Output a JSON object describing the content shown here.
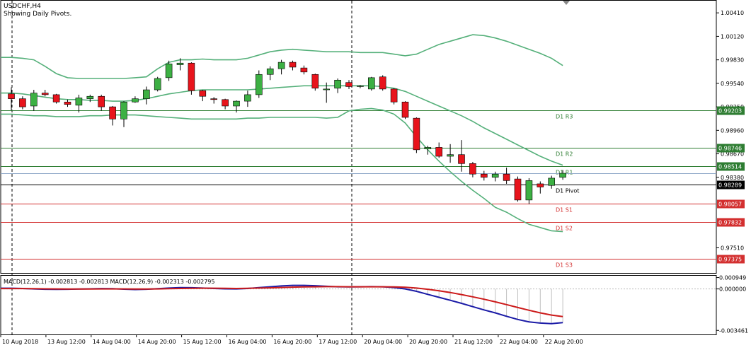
{
  "header": {
    "symbol": "USDCHF,H4",
    "subtitle": "Showing Daily Pivots."
  },
  "colors": {
    "bull": "#3cb043",
    "bear": "#e8141c",
    "band": "#55b07a",
    "resistance": "#2e7d32",
    "support": "#d32f2f",
    "pivot": "#000000",
    "macd_main": "#1a1aa6",
    "macd_signal": "#cc1a1a",
    "bid": "#8fa8c8"
  },
  "price_axis": {
    "ticks": [
      "1.00410",
      "1.00120",
      "0.99830",
      "0.99540",
      "0.99250",
      "0.98960",
      "0.98670",
      "0.98380",
      "0.97510"
    ]
  },
  "pivots": [
    {
      "label": "D1 R3",
      "value": "0.99203",
      "type": "resistance"
    },
    {
      "label": "D1 R2",
      "value": "0.98746",
      "type": "resistance"
    },
    {
      "label": "D1 R1",
      "value": "0.98514",
      "type": "resistance"
    },
    {
      "label": "D1 Pivot",
      "value": "0.98289",
      "type": "pivot"
    },
    {
      "label": "D1 S1",
      "value": "0.98057",
      "type": "support"
    },
    {
      "label": "D1 S2",
      "value": "0.97832",
      "type": "support"
    },
    {
      "label": "D1 S3",
      "value": "0.97375",
      "type": "support"
    }
  ],
  "current_price": "0.98430",
  "date_axis": [
    "10 Aug 2018",
    "13 Aug 12:00",
    "14 Aug 04:00",
    "14 Aug 20:00",
    "15 Aug 12:00",
    "16 Aug 04:00",
    "16 Aug 20:00",
    "17 Aug 12:00",
    "20 Aug 04:00",
    "20 Aug 20:00",
    "21 Aug 12:00",
    "22 Aug 04:00",
    "22 Aug 20:00"
  ],
  "macd": {
    "label": "MACD(12,26,1) -0.002813 -0.002813 MACD(12,26,9) -0.002313 -0.002795",
    "ticks": [
      "0.000949",
      "0.000000",
      "-0.003461"
    ]
  },
  "chart_data": {
    "type": "candlestick",
    "candles": [
      {
        "o": 0.9941,
        "h": 0.9949,
        "l": 0.9921,
        "c": 0.9935
      },
      {
        "o": 0.9935,
        "h": 0.9938,
        "l": 0.9922,
        "c": 0.9925
      },
      {
        "o": 0.9926,
        "h": 0.9946,
        "l": 0.992,
        "c": 0.9942
      },
      {
        "o": 0.9942,
        "h": 0.9946,
        "l": 0.9938,
        "c": 0.994
      },
      {
        "o": 0.994,
        "h": 0.9941,
        "l": 0.9929,
        "c": 0.9931
      },
      {
        "o": 0.9931,
        "h": 0.9934,
        "l": 0.9925,
        "c": 0.9928
      },
      {
        "o": 0.9927,
        "h": 0.994,
        "l": 0.9918,
        "c": 0.9936
      },
      {
        "o": 0.9935,
        "h": 0.994,
        "l": 0.9931,
        "c": 0.9938
      },
      {
        "o": 0.9938,
        "h": 0.994,
        "l": 0.992,
        "c": 0.9925
      },
      {
        "o": 0.9925,
        "h": 0.9926,
        "l": 0.9902,
        "c": 0.991
      },
      {
        "o": 0.991,
        "h": 0.9932,
        "l": 0.99,
        "c": 0.9931
      },
      {
        "o": 0.9931,
        "h": 0.9938,
        "l": 0.993,
        "c": 0.9935
      },
      {
        "o": 0.9935,
        "h": 0.995,
        "l": 0.9928,
        "c": 0.9946
      },
      {
        "o": 0.9946,
        "h": 0.9962,
        "l": 0.9944,
        "c": 0.996
      },
      {
        "o": 0.9961,
        "h": 0.9982,
        "l": 0.9957,
        "c": 0.9978
      },
      {
        "o": 0.9977,
        "h": 0.9985,
        "l": 0.997,
        "c": 0.9979
      },
      {
        "o": 0.9979,
        "h": 0.998,
        "l": 0.994,
        "c": 0.9945
      },
      {
        "o": 0.9945,
        "h": 0.9946,
        "l": 0.9932,
        "c": 0.9938
      },
      {
        "o": 0.9935,
        "h": 0.9937,
        "l": 0.9929,
        "c": 0.9934
      },
      {
        "o": 0.9934,
        "h": 0.9935,
        "l": 0.9922,
        "c": 0.9926
      },
      {
        "o": 0.9926,
        "h": 0.9933,
        "l": 0.9918,
        "c": 0.9932
      },
      {
        "o": 0.9932,
        "h": 0.9945,
        "l": 0.9925,
        "c": 0.994
      },
      {
        "o": 0.994,
        "h": 0.997,
        "l": 0.9936,
        "c": 0.9965
      },
      {
        "o": 0.9965,
        "h": 0.9975,
        "l": 0.9958,
        "c": 0.9972
      },
      {
        "o": 0.9972,
        "h": 0.9983,
        "l": 0.9965,
        "c": 0.998
      },
      {
        "o": 0.998,
        "h": 0.9982,
        "l": 0.997,
        "c": 0.9974
      },
      {
        "o": 0.9973,
        "h": 0.9976,
        "l": 0.9965,
        "c": 0.9968
      },
      {
        "o": 0.9965,
        "h": 0.9966,
        "l": 0.9945,
        "c": 0.9948
      },
      {
        "o": 0.9946,
        "h": 0.9955,
        "l": 0.993,
        "c": 0.9947
      },
      {
        "o": 0.9948,
        "h": 0.996,
        "l": 0.9942,
        "c": 0.9958
      },
      {
        "o": 0.9955,
        "h": 0.9958,
        "l": 0.9947,
        "c": 0.995
      },
      {
        "o": 0.995,
        "h": 0.9952,
        "l": 0.9948,
        "c": 0.9951
      },
      {
        "o": 0.9947,
        "h": 0.9962,
        "l": 0.9945,
        "c": 0.9961
      },
      {
        "o": 0.9962,
        "h": 0.9964,
        "l": 0.9945,
        "c": 0.9947
      },
      {
        "o": 0.9947,
        "h": 0.9948,
        "l": 0.9928,
        "c": 0.9931
      },
      {
        "o": 0.9931,
        "h": 0.9932,
        "l": 0.991,
        "c": 0.9912
      },
      {
        "o": 0.9911,
        "h": 0.9912,
        "l": 0.9868,
        "c": 0.9872
      },
      {
        "o": 0.9873,
        "h": 0.9877,
        "l": 0.9866,
        "c": 0.9875
      },
      {
        "o": 0.9875,
        "h": 0.9881,
        "l": 0.9862,
        "c": 0.9864
      },
      {
        "o": 0.9864,
        "h": 0.9879,
        "l": 0.9856,
        "c": 0.9866
      },
      {
        "o": 0.9866,
        "h": 0.9884,
        "l": 0.9845,
        "c": 0.9855
      },
      {
        "o": 0.9855,
        "h": 0.9857,
        "l": 0.9838,
        "c": 0.9842
      },
      {
        "o": 0.9842,
        "h": 0.9846,
        "l": 0.9834,
        "c": 0.9838
      },
      {
        "o": 0.9838,
        "h": 0.9845,
        "l": 0.9833,
        "c": 0.9842
      },
      {
        "o": 0.9842,
        "h": 0.985,
        "l": 0.983,
        "c": 0.9834
      },
      {
        "o": 0.9836,
        "h": 0.9839,
        "l": 0.9808,
        "c": 0.981
      },
      {
        "o": 0.981,
        "h": 0.9837,
        "l": 0.9805,
        "c": 0.9834
      },
      {
        "o": 0.983,
        "h": 0.9833,
        "l": 0.9818,
        "c": 0.9826
      },
      {
        "o": 0.9828,
        "h": 0.984,
        "l": 0.9824,
        "c": 0.9837
      },
      {
        "o": 0.9838,
        "h": 0.9847,
        "l": 0.9835,
        "c": 0.9843
      }
    ],
    "bands": {
      "upper": [
        0.9986,
        0.9985,
        0.9983,
        0.9975,
        0.9966,
        0.9961,
        0.996,
        0.996,
        0.996,
        0.996,
        0.996,
        0.9961,
        0.9962,
        0.9972,
        0.998,
        0.9983,
        0.9983,
        0.9984,
        0.9983,
        0.9983,
        0.9983,
        0.9985,
        0.9989,
        0.9993,
        0.9995,
        0.9996,
        0.9995,
        0.9994,
        0.9993,
        0.9993,
        0.9993,
        0.9992,
        0.9992,
        0.9992,
        0.999,
        0.9988,
        0.999,
        0.9996,
        1.0002,
        1.0006,
        1.001,
        1.0014,
        1.0013,
        1.001,
        1.0006,
        1.0001,
        0.9996,
        0.9991,
        0.9985,
        0.9976
      ],
      "middle": [
        0.9942,
        0.9941,
        0.9939,
        0.9937,
        0.9935,
        0.9934,
        0.9934,
        0.9933,
        0.9933,
        0.9932,
        0.9932,
        0.9933,
        0.9935,
        0.9938,
        0.9941,
        0.9943,
        0.9945,
        0.9946,
        0.9946,
        0.9946,
        0.9946,
        0.9946,
        0.9947,
        0.9948,
        0.9949,
        0.995,
        0.9951,
        0.9951,
        0.9951,
        0.9951,
        0.9951,
        0.9951,
        0.9951,
        0.995,
        0.9948,
        0.9944,
        0.9938,
        0.9932,
        0.9926,
        0.992,
        0.9914,
        0.9907,
        0.9899,
        0.9892,
        0.9885,
        0.9878,
        0.9871,
        0.9864,
        0.9858,
        0.9853
      ],
      "lower": [
        0.9916,
        0.9915,
        0.9914,
        0.9914,
        0.9913,
        0.9913,
        0.9913,
        0.9914,
        0.9914,
        0.9915,
        0.9915,
        0.9915,
        0.9914,
        0.9913,
        0.9912,
        0.9911,
        0.991,
        0.991,
        0.991,
        0.991,
        0.991,
        0.9911,
        0.9911,
        0.9912,
        0.9912,
        0.9912,
        0.9912,
        0.9912,
        0.9911,
        0.9912,
        0.992,
        0.9922,
        0.9923,
        0.9921,
        0.9916,
        0.9905,
        0.9888,
        0.9872,
        0.9858,
        0.9845,
        0.9833,
        0.9822,
        0.9812,
        0.9801,
        0.9795,
        0.9787,
        0.978,
        0.9776,
        0.9772,
        0.9771
      ]
    },
    "macd_main": [
      6e-05,
      4e-05,
      0.0,
      -3e-05,
      -4e-05,
      -3e-05,
      -1e-05,
      1e-05,
      3e-05,
      2e-05,
      -2e-05,
      -5e-05,
      -3e-05,
      2e-05,
      7e-05,
      0.00011,
      0.0001,
      7e-05,
      4e-05,
      1e-05,
      0.0,
      4e-05,
      0.00011,
      0.00018,
      0.00025,
      0.0003,
      0.0003,
      0.00027,
      0.00022,
      0.00018,
      0.00017,
      0.00018,
      0.00019,
      0.00018,
      0.00012,
      0.0,
      -0.0002,
      -0.00045,
      -0.0007,
      -0.00095,
      -0.0012,
      -0.00148,
      -0.00175,
      -0.002,
      -0.00228,
      -0.00255,
      -0.00275,
      -0.00285,
      -0.0029,
      -0.00281
    ],
    "macd_signal": [
      3e-05,
      3e-05,
      2e-05,
      1e-05,
      0.0,
      -1e-05,
      -1e-05,
      -1e-05,
      0.0,
      0.0,
      0.0,
      -1e-05,
      -1e-05,
      0.0,
      2e-05,
      4e-05,
      5e-05,
      6e-05,
      6e-05,
      5e-05,
      4e-05,
      5e-05,
      7e-05,
      9e-05,
      0.00012,
      0.00015,
      0.00017,
      0.00018,
      0.00019,
      0.00019,
      0.00018,
      0.00018,
      0.00018,
      0.00018,
      0.00017,
      0.00014,
      7e-05,
      -3e-05,
      -0.00015,
      -0.0003,
      -0.00047,
      -0.00066,
      -0.00086,
      -0.00108,
      -0.00131,
      -0.00155,
      -0.00178,
      -0.002,
      -0.00218,
      -0.00231
    ],
    "y_range": [
      0.972,
      1.0056
    ],
    "macd_range": [
      -0.0038,
      0.0011
    ]
  }
}
